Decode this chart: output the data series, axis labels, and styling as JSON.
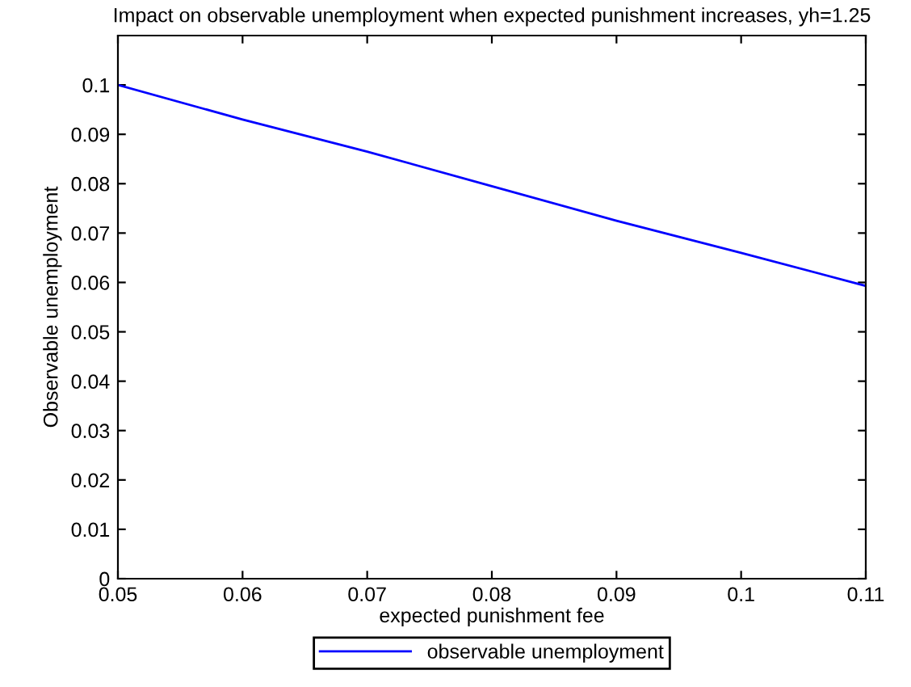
{
  "chart_data": {
    "type": "line",
    "title": "Impact on observable unemployment when expected punishment increases, yh=1.25",
    "xlabel": "expected punishment fee",
    "ylabel": "Observable unemployment",
    "x": [
      0.05,
      0.06,
      0.07,
      0.08,
      0.09,
      0.1,
      0.11
    ],
    "series": [
      {
        "name": "observable unemployment",
        "color": "#0000ff",
        "values": [
          0.1,
          0.093,
          0.0865,
          0.0795,
          0.0725,
          0.066,
          0.0593
        ]
      }
    ],
    "xlim": [
      0.05,
      0.11
    ],
    "xticks": [
      0.05,
      0.06,
      0.07,
      0.08,
      0.09,
      0.1,
      0.11
    ],
    "ylim": [
      0,
      0.11
    ],
    "yticks": [
      0,
      0.01,
      0.02,
      0.03,
      0.04,
      0.05,
      0.06,
      0.07,
      0.08,
      0.09,
      0.1
    ],
    "grid": false,
    "legend": "bottom",
    "marker": "none",
    "line_style": "solid"
  }
}
